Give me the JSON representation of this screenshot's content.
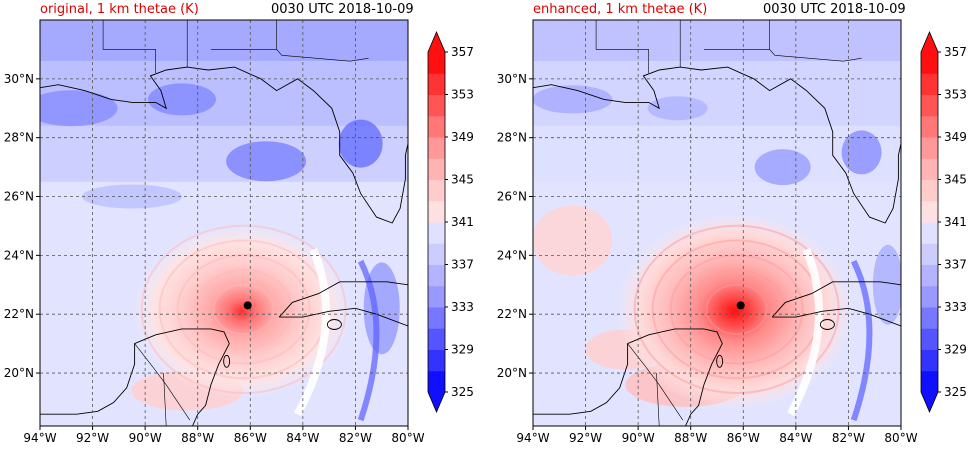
{
  "panels": [
    {
      "id": "original",
      "title_left": "original, 1 km thetae (K)",
      "title_right": "0030 UTC 2018-10-09"
    },
    {
      "id": "enhanced",
      "title_left": "enhanced, 1 km thetae (K)",
      "title_right": "0030 UTC 2018-10-09"
    }
  ],
  "map": {
    "lat_labels": [
      "30°N",
      "28°N",
      "26°N",
      "24°N",
      "22°N",
      "20°N"
    ],
    "lat_values": [
      30,
      28,
      26,
      24,
      22,
      20
    ],
    "lon_labels": [
      "94°W",
      "92°W",
      "90°W",
      "88°W",
      "86°W",
      "84°W",
      "82°W",
      "80°W"
    ],
    "lon_values": [
      -94,
      -92,
      -90,
      -88,
      -86,
      -84,
      -82,
      -80
    ],
    "lon_range": [
      -94,
      -80
    ],
    "lat_range": [
      18.2,
      32
    ],
    "storm_center": {
      "lon": -86.1,
      "lat": 22.3
    }
  },
  "colorbar": {
    "labels": [
      "357",
      "353",
      "349",
      "345",
      "341",
      "337",
      "333",
      "329",
      "325"
    ],
    "colors": [
      "#1010ff",
      "#3333ff",
      "#5555ff",
      "#7777ff",
      "#9999ff",
      "#b3b3ff",
      "#ccccff",
      "#e0e0ff",
      "#ffe0e0",
      "#ffcccc",
      "#ffb3b3",
      "#ff9999",
      "#ff7777",
      "#ff5555",
      "#ff3333",
      "#ff1010"
    ],
    "min": 325,
    "max": 357
  }
}
